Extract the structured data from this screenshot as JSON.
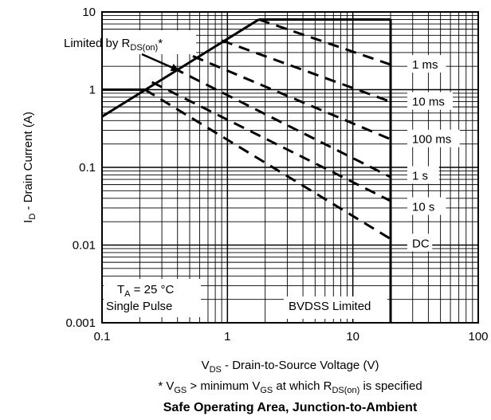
{
  "chart_data": {
    "type": "line",
    "title": "Safe Operating Area, Junction-to-Ambient",
    "footnote": {
      "prefix": "* V",
      "sub1": "GS",
      "mid": " >  minimum V",
      "sub2": "GS",
      "mid2": " at which R",
      "sub3": "DS(on)",
      "suffix": " is specified"
    },
    "xlabel": {
      "main": "V",
      "sub": "DS",
      "rest": " - Drain-to-Source Voltage (V)"
    },
    "ylabel": {
      "main": "I",
      "sub": "D",
      "rest": " - Drain Current (A)"
    },
    "x_scale": "log",
    "y_scale": "log",
    "xlim": [
      0.1,
      100
    ],
    "ylim": [
      0.001,
      10
    ],
    "x_ticks": [
      {
        "v": 0.1,
        "label": "0.1"
      },
      {
        "v": 1,
        "label": "1"
      },
      {
        "v": 10,
        "label": "10"
      },
      {
        "v": 100,
        "label": "100"
      }
    ],
    "y_ticks": [
      {
        "v": 10,
        "label": "10"
      },
      {
        "v": 1,
        "label": "1"
      },
      {
        "v": 0.1,
        "label": "0.1"
      },
      {
        "v": 0.01,
        "label": "0.01"
      },
      {
        "v": 0.001,
        "label": "0.001"
      }
    ],
    "grid": true,
    "limit_lines": [
      {
        "name": "rds_on_limit",
        "points": [
          [
            0.1,
            0.45
          ],
          [
            1.78,
            8
          ]
        ]
      },
      {
        "name": "current_limit",
        "points": [
          [
            1.78,
            8
          ],
          [
            20,
            8
          ]
        ]
      },
      {
        "name": "bvdss_limit",
        "points": [
          [
            20,
            8
          ],
          [
            20,
            0.001
          ]
        ]
      },
      {
        "name": "dc_plateau",
        "points": [
          [
            0.1,
            1.0
          ],
          [
            0.22,
            1.0
          ]
        ]
      }
    ],
    "series": [
      {
        "name": "1 ms",
        "points": [
          [
            1.78,
            8
          ],
          [
            20,
            2.1
          ]
        ]
      },
      {
        "name": "10 ms",
        "points": [
          [
            0.9,
            4.3
          ],
          [
            20,
            0.7
          ]
        ]
      },
      {
        "name": "100 ms",
        "points": [
          [
            0.53,
            2.7
          ],
          [
            20,
            0.23
          ]
        ]
      },
      {
        "name": "1 s",
        "points": [
          [
            0.37,
            1.9
          ],
          [
            20,
            0.075
          ]
        ]
      },
      {
        "name": "10 s",
        "points": [
          [
            0.25,
            1.25
          ],
          [
            20,
            0.037
          ]
        ]
      },
      {
        "name": "DC",
        "points": [
          [
            0.22,
            1.0
          ],
          [
            20,
            0.012
          ]
        ]
      }
    ],
    "curve_labels": [
      {
        "text": "1 ms",
        "x": 28,
        "y": 2.1
      },
      {
        "text": "10 ms",
        "x": 28,
        "y": 0.7
      },
      {
        "text": "100 ms",
        "x": 28,
        "y": 0.23
      },
      {
        "text": "1 s",
        "x": 28,
        "y": 0.078
      },
      {
        "text": "10 s",
        "x": 28,
        "y": 0.031
      },
      {
        "text": "DC",
        "x": 28,
        "y": 0.0105
      }
    ],
    "annotations": {
      "rds_label": {
        "main": "Limited by R",
        "sub": "DS(on)",
        "suffix": "*"
      },
      "rds_arrow_target": [
        0.45,
        1.15
      ],
      "ta_line": {
        "main": "T",
        "sub": "A",
        "suffix": " = 25 °C"
      },
      "pulse": "Single Pulse",
      "bvdss": "BVDSS Limited"
    }
  }
}
